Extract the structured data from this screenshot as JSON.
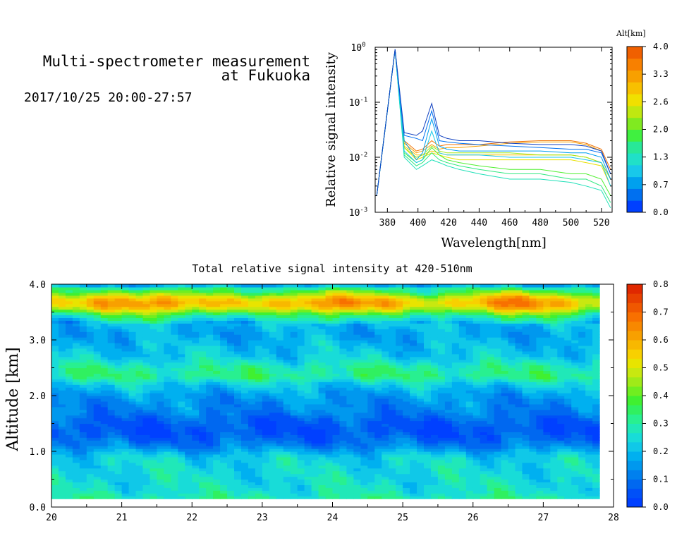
{
  "header": {
    "title_line1": "Multi-spectrometer measurement",
    "title_line2": "at Fukuoka",
    "datetime": "2017/10/25 20:00-27:57"
  },
  "chart_data": [
    {
      "type": "line",
      "title": "",
      "xlabel": "Wavelength[nm]",
      "ylabel": "Relative signal intensity",
      "yscale": "log",
      "xlim": [
        372,
        527
      ],
      "ylim": [
        0.001,
        1
      ],
      "xticks": [
        "380",
        "400",
        "420",
        "440",
        "460",
        "480",
        "500",
        "520"
      ],
      "yticks": [
        {
          "base": "10",
          "exp": "0"
        },
        {
          "base": "10",
          "exp": "-1"
        },
        {
          "base": "10",
          "exp": "-2"
        },
        {
          "base": "10",
          "exp": "-3"
        }
      ],
      "colorbar": {
        "title": "Alt[km]",
        "ticks": [
          "4.0",
          "3.3",
          "2.6",
          "2.0",
          "1.3",
          "0.7",
          "0.0"
        ],
        "colors": [
          "#0040ff",
          "#0070f0",
          "#00a0ee",
          "#18c8ea",
          "#20e0c8",
          "#28e898",
          "#40f040",
          "#80ea20",
          "#c0e810",
          "#f0e000",
          "#f8c000",
          "#f8a000",
          "#f88000",
          "#f06000"
        ]
      },
      "x": [
        373,
        385,
        391,
        399,
        403,
        409,
        414,
        419,
        427,
        440,
        460,
        480,
        500,
        510,
        520,
        526
      ],
      "series": [
        {
          "color": "#f07000",
          "values": [
            0.002,
            0.9,
            0.02,
            0.013,
            0.014,
            0.02,
            0.016,
            0.017,
            0.017,
            0.017,
            0.019,
            0.02,
            0.02,
            0.018,
            0.014,
            0.006
          ]
        },
        {
          "color": "#f8a000",
          "values": [
            0.002,
            0.9,
            0.018,
            0.012,
            0.013,
            0.017,
            0.014,
            0.015,
            0.015,
            0.016,
            0.018,
            0.019,
            0.019,
            0.017,
            0.013,
            0.005
          ]
        },
        {
          "color": "#f8c000",
          "values": [
            0.002,
            0.9,
            0.016,
            0.011,
            0.011,
            0.013,
            0.012,
            0.011,
            0.011,
            0.011,
            0.011,
            0.011,
            0.011,
            0.01,
            0.008,
            0.004
          ]
        },
        {
          "color": "#e8e000",
          "values": [
            0.002,
            0.9,
            0.015,
            0.009,
            0.01,
            0.012,
            0.011,
            0.01,
            0.009,
            0.009,
            0.009,
            0.009,
            0.009,
            0.008,
            0.007,
            0.003
          ]
        },
        {
          "color": "#a0e818",
          "values": [
            0.002,
            0.9,
            0.015,
            0.01,
            0.011,
            0.016,
            0.013,
            0.012,
            0.012,
            0.012,
            0.012,
            0.011,
            0.011,
            0.01,
            0.008,
            0.004
          ]
        },
        {
          "color": "#50f030",
          "values": [
            0.002,
            0.9,
            0.012,
            0.008,
            0.009,
            0.015,
            0.011,
            0.009,
            0.008,
            0.007,
            0.006,
            0.006,
            0.005,
            0.005,
            0.004,
            0.002
          ]
        },
        {
          "color": "#30e880",
          "values": [
            0.002,
            0.9,
            0.011,
            0.007,
            0.008,
            0.012,
            0.009,
            0.008,
            0.007,
            0.006,
            0.005,
            0.005,
            0.004,
            0.004,
            0.003,
            0.0015
          ]
        },
        {
          "color": "#20e0b8",
          "values": [
            0.002,
            0.9,
            0.01,
            0.006,
            0.007,
            0.009,
            0.008,
            0.007,
            0.006,
            0.005,
            0.004,
            0.004,
            0.0035,
            0.003,
            0.0025,
            0.0012
          ]
        },
        {
          "color": "#18c8e8",
          "values": [
            0.002,
            0.9,
            0.013,
            0.008,
            0.009,
            0.03,
            0.012,
            0.011,
            0.011,
            0.011,
            0.01,
            0.01,
            0.01,
            0.009,
            0.008,
            0.003
          ]
        },
        {
          "color": "#00a0ee",
          "values": [
            0.002,
            0.9,
            0.02,
            0.009,
            0.012,
            0.05,
            0.016,
            0.014,
            0.013,
            0.013,
            0.013,
            0.013,
            0.012,
            0.012,
            0.01,
            0.004
          ]
        },
        {
          "color": "#0070f0",
          "values": [
            0.002,
            0.9,
            0.025,
            0.022,
            0.02,
            0.07,
            0.02,
            0.019,
            0.018,
            0.017,
            0.016,
            0.015,
            0.014,
            0.014,
            0.012,
            0.005
          ]
        },
        {
          "color": "#1040c0",
          "values": [
            0.002,
            0.92,
            0.028,
            0.025,
            0.03,
            0.095,
            0.025,
            0.022,
            0.02,
            0.02,
            0.018,
            0.017,
            0.017,
            0.016,
            0.013,
            0.005
          ]
        }
      ]
    },
    {
      "type": "heatmap",
      "title": "Total relative signal intensity at 420-510nm",
      "xlabel": "",
      "ylabel": "Altitude [km]",
      "xlim": [
        20,
        28
      ],
      "ylim": [
        0,
        4
      ],
      "data_x_extent": [
        20,
        27.8
      ],
      "data_y_extent": [
        0.15,
        4.0
      ],
      "xticks": [
        "20",
        "21",
        "22",
        "23",
        "24",
        "25",
        "26",
        "27",
        "28"
      ],
      "yticks": [
        "0.0",
        "1.0",
        "2.0",
        "3.0",
        "4.0"
      ],
      "colorbar": {
        "ticks": [
          "0.8",
          "0.7",
          "0.6",
          "0.5",
          "0.4",
          "0.3",
          "0.2",
          "0.1",
          "0.0"
        ],
        "vmin": 0.0,
        "vmax": 0.8,
        "colors": [
          "#0040ff",
          "#0050f8",
          "#0068f0",
          "#0080ee",
          "#0098ee",
          "#00b0f0",
          "#10c8e8",
          "#18dcd8",
          "#20e8b8",
          "#28f090",
          "#30f060",
          "#40f030",
          "#70ee20",
          "#a0ea18",
          "#c8e810",
          "#e8e400",
          "#f8d000",
          "#f8b800",
          "#f8a000",
          "#f88800",
          "#f87000",
          "#f05800",
          "#e84000",
          "#e02800"
        ]
      },
      "altitude_profile": [
        [
          0.15,
          0.3
        ],
        [
          0.3,
          0.26
        ],
        [
          0.5,
          0.25
        ],
        [
          0.75,
          0.24
        ],
        [
          0.9,
          0.23
        ],
        [
          1.0,
          0.18
        ],
        [
          1.1,
          0.12
        ],
        [
          1.25,
          0.07
        ],
        [
          1.4,
          0.05
        ],
        [
          1.55,
          0.07
        ],
        [
          1.7,
          0.12
        ],
        [
          1.9,
          0.14
        ],
        [
          2.05,
          0.17
        ],
        [
          2.2,
          0.22
        ],
        [
          2.35,
          0.32
        ],
        [
          2.5,
          0.3
        ],
        [
          2.7,
          0.22
        ],
        [
          2.9,
          0.2
        ],
        [
          3.1,
          0.17
        ],
        [
          3.3,
          0.2
        ],
        [
          3.45,
          0.34
        ],
        [
          3.55,
          0.5
        ],
        [
          3.65,
          0.6
        ],
        [
          3.75,
          0.55
        ],
        [
          3.85,
          0.4
        ],
        [
          3.95,
          0.28
        ],
        [
          4.0,
          0.1
        ]
      ]
    }
  ]
}
